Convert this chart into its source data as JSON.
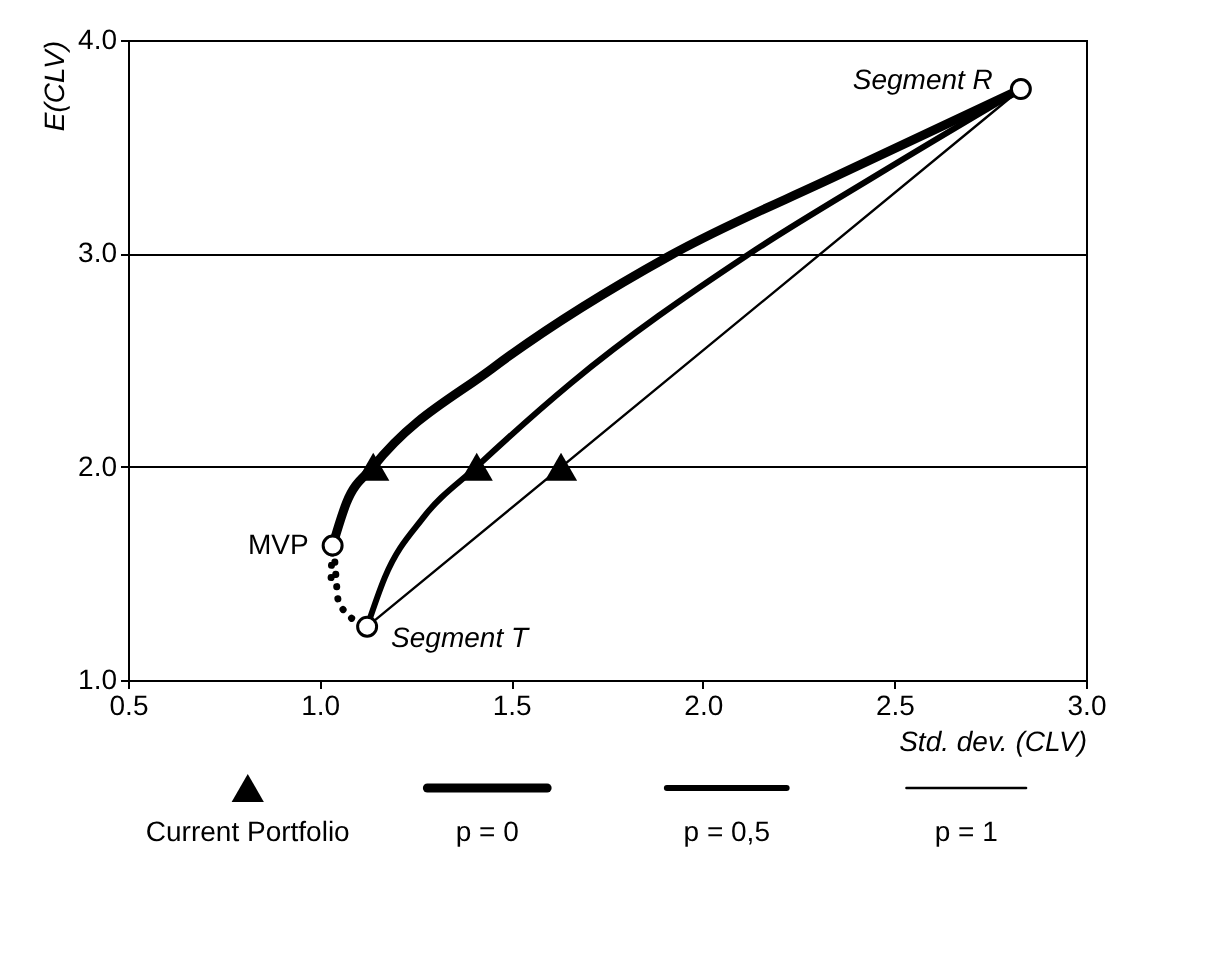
{
  "chart_data": {
    "type": "line",
    "xlabel": "Std. dev. (CLV)",
    "ylabel": "E(CLV)",
    "xlim": [
      0.5,
      3.0
    ],
    "ylim": [
      1.0,
      4.0
    ],
    "xticks": [
      {
        "value": 0.5,
        "label": "0.5"
      },
      {
        "value": 1,
        "label": "1.0"
      },
      {
        "value": 1.5,
        "label": "1.5"
      },
      {
        "value": 2,
        "label": "2.0"
      },
      {
        "value": 2.5,
        "label": "2.5"
      },
      {
        "value": 3,
        "label": "3.0"
      }
    ],
    "yticks": [
      {
        "value": 1,
        "label": "1.0"
      },
      {
        "value": 2,
        "label": "2.0"
      },
      {
        "value": 3,
        "label": "3.0"
      },
      {
        "value": 4,
        "label": "4.0"
      }
    ],
    "grid": "y",
    "legend": "bottom",
    "series": [
      {
        "name": "p = 0",
        "color": "#000000",
        "line_style": "solid",
        "x": [
          1.034,
          1.07,
          1.14,
          1.45,
          1.915,
          2.357,
          2.83
        ],
        "values": [
          1.63,
          1.83,
          2.0,
          2.46,
          2.99,
          3.37,
          3.77
        ]
      },
      {
        "name": "p = 0,5",
        "color": "#000000",
        "line_style": "solid",
        "x": [
          1.124,
          1.17,
          1.27,
          1.41,
          1.655,
          2.115,
          2.457,
          2.83
        ],
        "values": [
          1.25,
          1.48,
          1.76,
          2.0,
          2.39,
          2.99,
          3.37,
          3.77
        ]
      },
      {
        "name": "p = 1",
        "color": "#000000",
        "line_style": "solid",
        "x": [
          1.124,
          2.83
        ],
        "values": [
          1.25,
          3.77
        ]
      },
      {
        "color": "#000000",
        "line_style": "dotted",
        "x": [
          1.034,
          1.03,
          1.05,
          1.124
        ],
        "values": [
          1.63,
          1.48,
          1.36,
          1.25
        ]
      },
      {
        "type": "scatter",
        "marker": "circle",
        "color": "#000000",
        "x": [
          2.83,
          1.034,
          1.124
        ],
        "values": [
          3.77,
          1.63,
          1.25
        ]
      },
      {
        "type": "scatter",
        "marker": "triangle",
        "name": "Current Portfolio",
        "color": "#000000",
        "x": [
          1.14,
          1.41,
          1.63
        ],
        "values": [
          2.0,
          2.0,
          2.0
        ]
      }
    ],
    "annotations": [
      {
        "text": "Segment R",
        "x": 2.83,
        "y": 3.77
      },
      {
        "text": "MVP",
        "x": 1.034,
        "y": 1.63
      },
      {
        "text": "Segment T",
        "x": 1.124,
        "y": 1.25
      }
    ]
  }
}
